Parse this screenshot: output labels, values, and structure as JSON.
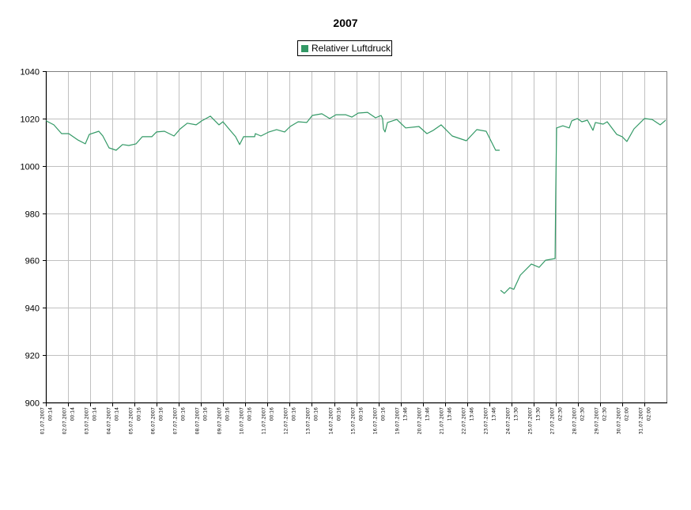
{
  "chart_data": {
    "type": "line",
    "title": "2007",
    "xlabel": "",
    "ylabel": "",
    "ylim": [
      900,
      1040
    ],
    "yticks": [
      900,
      920,
      940,
      960,
      980,
      1000,
      1020,
      1040
    ],
    "grid": true,
    "legend_position": "top-center",
    "line_color": "#339966",
    "categories": [
      [
        "01.07.2007",
        "00:14"
      ],
      [
        "02.07.2007",
        "00:14"
      ],
      [
        "03.07.2007",
        "00:14"
      ],
      [
        "04.07.2007",
        "00:14"
      ],
      [
        "05.07.2007",
        "00:16"
      ],
      [
        "06.07.2007",
        "00:16"
      ],
      [
        "07.07.2007",
        "00:16"
      ],
      [
        "08.07.2007",
        "00:16"
      ],
      [
        "09.07.2007",
        "00:16"
      ],
      [
        "10.07.2007",
        "00:16"
      ],
      [
        "11.07.2007",
        "00:16"
      ],
      [
        "12.07.2007",
        "00:16"
      ],
      [
        "13.07.2007",
        "00:16"
      ],
      [
        "14.07.2007",
        "00:16"
      ],
      [
        "15.07.2007",
        "00:16"
      ],
      [
        "16.07.2007",
        "00:16"
      ],
      [
        "19.07.2007",
        "13:46"
      ],
      [
        "20.07.2007",
        "13:46"
      ],
      [
        "21.07.2007",
        "13:46"
      ],
      [
        "22.07.2007",
        "13:46"
      ],
      [
        "23.07.2007",
        "13:46"
      ],
      [
        "24.07.2007",
        "13:30"
      ],
      [
        "25.07.2007",
        "13:30"
      ],
      [
        "27.07.2007",
        "02:30"
      ],
      [
        "28.07.2007",
        "02:30"
      ],
      [
        "29.07.2007",
        "02:30"
      ],
      [
        "30.07.2007",
        "02:00"
      ],
      [
        "31.07.2007",
        "02:00"
      ]
    ],
    "xlim": [
      0,
      27.98
    ],
    "series": [
      {
        "name": "Relativer Luftdruck",
        "points": [
          [
            0,
            1019.1
          ],
          [
            0.36,
            1017.3
          ],
          [
            0.71,
            1013.6
          ],
          [
            1.03,
            1013.6
          ],
          [
            1.43,
            1011
          ],
          [
            1.78,
            1009.3
          ],
          [
            1.96,
            1013.3
          ],
          [
            2.39,
            1014.6
          ],
          [
            2.57,
            1012.6
          ],
          [
            2.85,
            1007.6
          ],
          [
            3.17,
            1006.6
          ],
          [
            3.46,
            1009
          ],
          [
            3.74,
            1008.6
          ],
          [
            4.07,
            1009.3
          ],
          [
            4.35,
            1012.3
          ],
          [
            4.78,
            1012.3
          ],
          [
            4.99,
            1014.3
          ],
          [
            5.35,
            1014.6
          ],
          [
            5.78,
            1012.6
          ],
          [
            6.06,
            1015.6
          ],
          [
            6.38,
            1018
          ],
          [
            6.78,
            1017.3
          ],
          [
            7.03,
            1019
          ],
          [
            7.42,
            1021
          ],
          [
            7.81,
            1017.3
          ],
          [
            7.99,
            1018.6
          ],
          [
            8.35,
            1014.6
          ],
          [
            8.56,
            1012.3
          ],
          [
            8.74,
            1009
          ],
          [
            8.92,
            1012.3
          ],
          [
            9.42,
            1012.3
          ],
          [
            9.45,
            1013.6
          ],
          [
            9.7,
            1012.6
          ],
          [
            10.06,
            1014.3
          ],
          [
            10.41,
            1015.3
          ],
          [
            10.77,
            1014.3
          ],
          [
            11.02,
            1016.6
          ],
          [
            11.38,
            1018.6
          ],
          [
            11.77,
            1018.3
          ],
          [
            12.02,
            1021.3
          ],
          [
            12.45,
            1022
          ],
          [
            12.8,
            1020
          ],
          [
            13.09,
            1021.6
          ],
          [
            13.52,
            1021.6
          ],
          [
            13.8,
            1020.6
          ],
          [
            14.09,
            1022.3
          ],
          [
            14.51,
            1022.6
          ],
          [
            14.87,
            1020.3
          ],
          [
            15.12,
            1021.3
          ],
          [
            15.19,
            1020
          ],
          [
            15.23,
            1015.6
          ],
          [
            15.3,
            1014.3
          ],
          [
            15.41,
            1018.3
          ],
          [
            15.83,
            1019.6
          ],
          [
            16.23,
            1016
          ],
          [
            16.83,
            1016.6
          ],
          [
            17.19,
            1013.6
          ],
          [
            17.48,
            1015
          ],
          [
            17.83,
            1017.3
          ],
          [
            18.33,
            1012.6
          ],
          [
            18.97,
            1010.6
          ],
          [
            19.44,
            1015.3
          ],
          [
            19.86,
            1014.6
          ],
          [
            20.29,
            1006.6
          ],
          [
            20.47,
            1006.6
          ],
          null,
          [
            20.51,
            947.4
          ],
          [
            20.68,
            946.1
          ],
          [
            20.93,
            948.5
          ],
          [
            21.11,
            947.8
          ],
          [
            21.4,
            953.8
          ],
          [
            21.9,
            958.5
          ],
          [
            22.25,
            957.1
          ],
          [
            22.54,
            960.1
          ],
          [
            22.97,
            960.8
          ],
          [
            23.0,
            988.2
          ],
          [
            23.04,
            1016
          ],
          [
            23.32,
            1016.9
          ],
          [
            23.61,
            1016
          ],
          [
            23.72,
            1019
          ],
          [
            23.97,
            1020
          ],
          [
            24.18,
            1018.6
          ],
          [
            24.43,
            1019.3
          ],
          [
            24.68,
            1015
          ],
          [
            24.79,
            1018.3
          ],
          [
            25.14,
            1017.6
          ],
          [
            25.32,
            1018.6
          ],
          [
            25.75,
            1013.3
          ],
          [
            26.0,
            1012.3
          ],
          [
            26.21,
            1010.3
          ],
          [
            26.53,
            1015.6
          ],
          [
            27.0,
            1020
          ],
          [
            27.35,
            1019.6
          ],
          [
            27.71,
            1017.3
          ],
          [
            27.96,
            1019.3
          ]
        ]
      }
    ]
  }
}
